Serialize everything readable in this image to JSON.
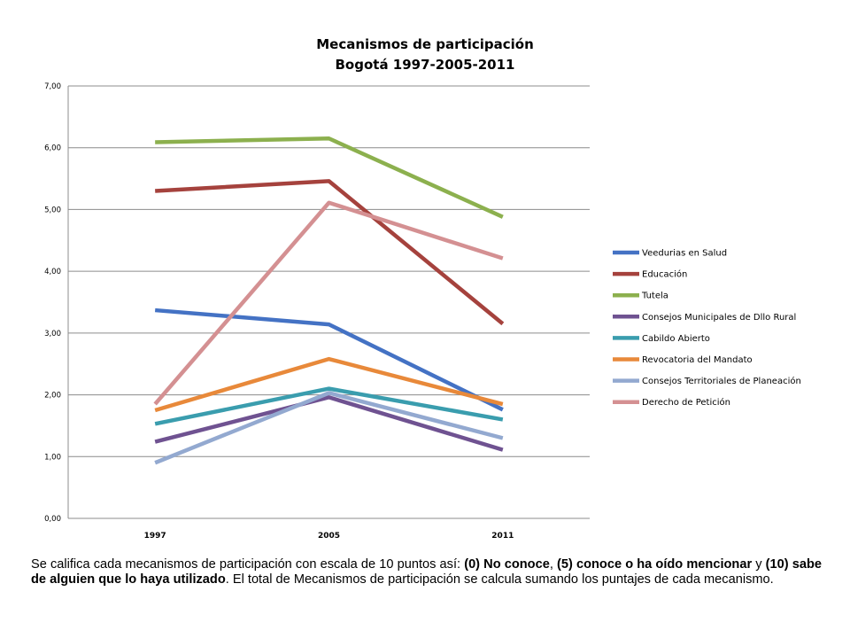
{
  "chart_data": {
    "type": "line",
    "title": [
      "Mecanismos de participación",
      "Bogotá 1997-2005-2011"
    ],
    "categories": [
      "1997",
      "2005",
      "2011"
    ],
    "ylim": [
      0,
      7
    ],
    "yticks": [
      "0,00",
      "1,00",
      "2,00",
      "3,00",
      "4,00",
      "5,00",
      "6,00",
      "7,00"
    ],
    "grid": true,
    "legend": "right",
    "series": [
      {
        "name": "Veedurias en Salud",
        "color": "#4472C4",
        "values": [
          3.37,
          3.14,
          1.76
        ]
      },
      {
        "name": "Educación",
        "color": "#A5423D",
        "values": [
          5.3,
          5.46,
          3.15
        ]
      },
      {
        "name": "Tutela",
        "color": "#8CB04E",
        "values": [
          6.09,
          6.15,
          4.88
        ]
      },
      {
        "name": "Consejos Municipales de Dllo Rural",
        "color": "#6F5291",
        "values": [
          1.24,
          1.96,
          1.11
        ]
      },
      {
        "name": "Cabildo Abierto",
        "color": "#3A9DAE",
        "values": [
          1.53,
          2.1,
          1.6
        ]
      },
      {
        "name": "Revocatoria del Mandato",
        "color": "#E8893A",
        "values": [
          1.75,
          2.58,
          1.85
        ]
      },
      {
        "name": "Consejos Territoriales de Planeación",
        "color": "#93A9D0",
        "values": [
          0.9,
          2.03,
          1.3
        ]
      },
      {
        "name": "Derecho de Petición",
        "color": "#D49092",
        "values": [
          1.85,
          5.11,
          4.21
        ]
      }
    ]
  },
  "note": {
    "t1": "Se califica cada mecanismos de participación con escala de 10 puntos así: ",
    "b1": "(0) No conoce",
    "t2": ", ",
    "b2": "(5) conoce o ha oído mencionar",
    "t3": " y ",
    "b3": "(10) sabe de alguien que lo haya utilizado",
    "t4": ". El total de Mecanismos de participación se calcula sumando los puntajes de cada mecanismo."
  }
}
